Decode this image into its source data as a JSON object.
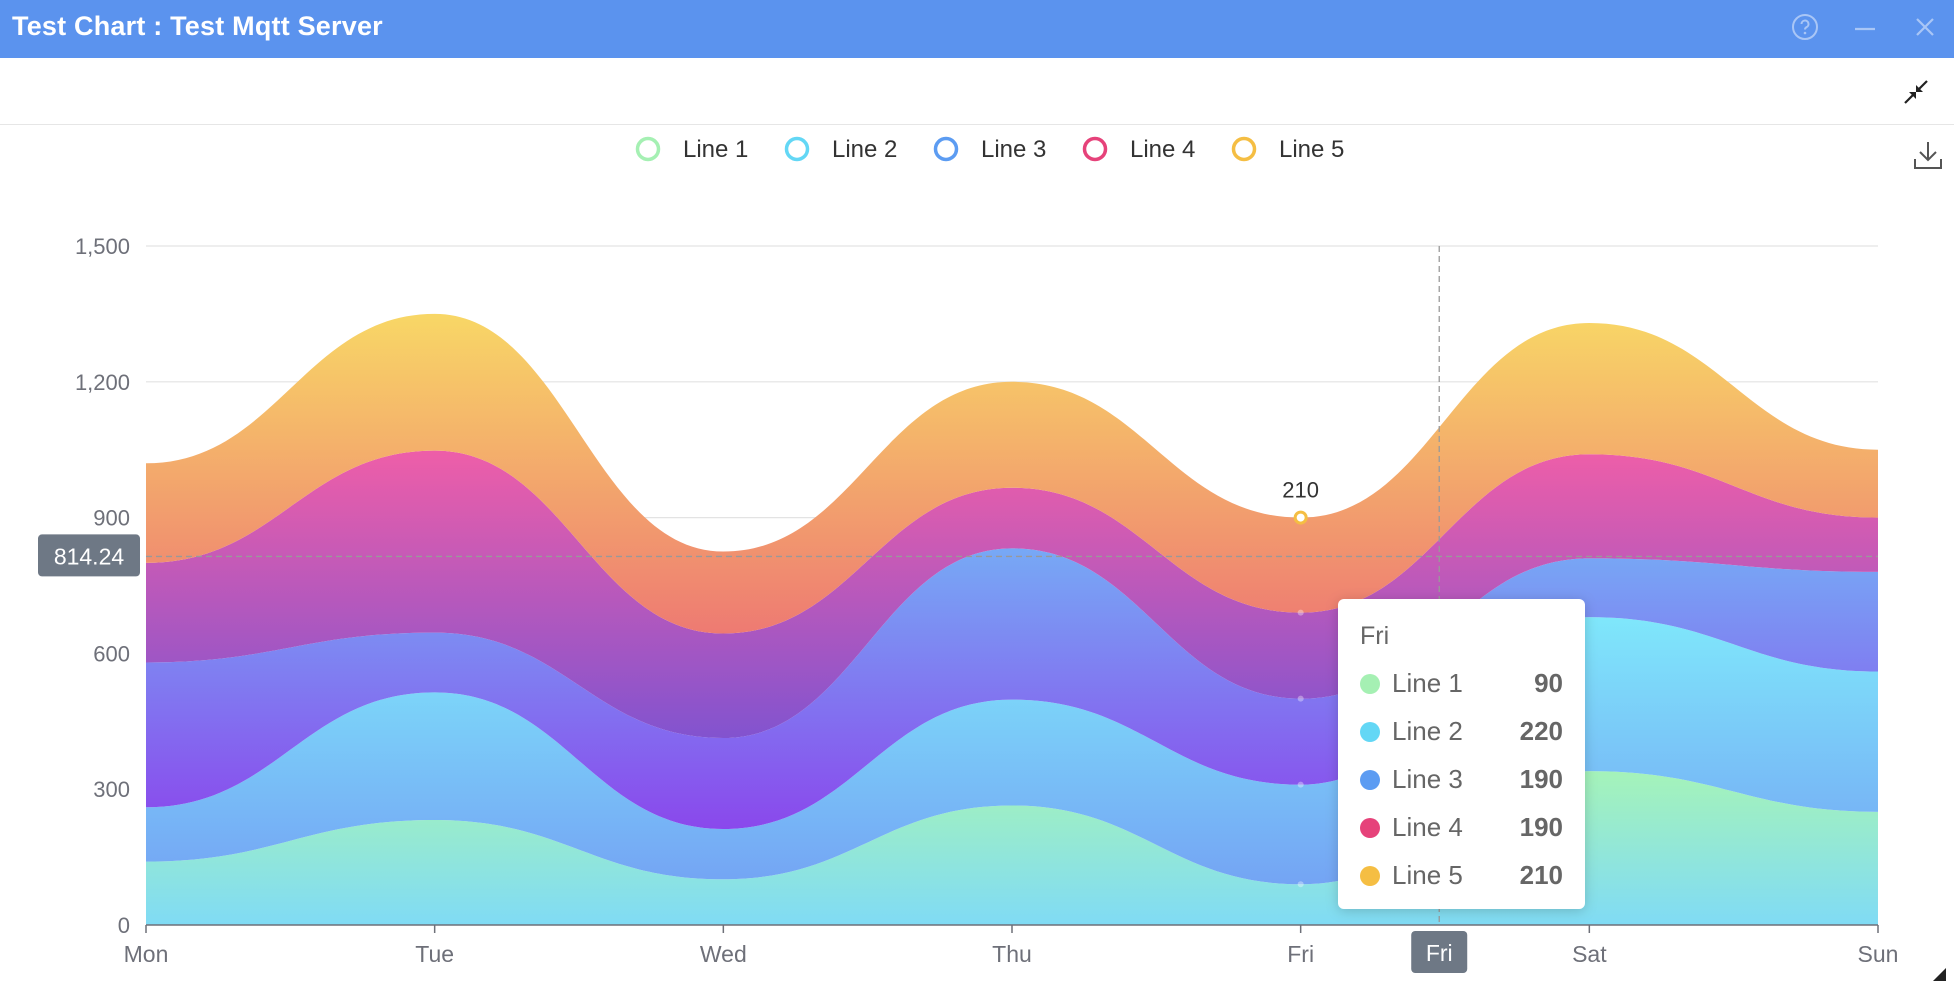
{
  "window": {
    "title": "Test Chart : Test Mqtt Server",
    "help_icon": "help-circle-icon",
    "minimize_icon": "minimize-icon",
    "close_icon": "close-icon"
  },
  "toolbar": {
    "collapse_icon": "collapse-arrows-icon",
    "download_icon": "download-icon"
  },
  "colors": {
    "titlebar": "#5b93ee",
    "line1": "#a5f0b3",
    "line2": "#63d7f5",
    "line3": "#5c9cf2",
    "line4": "#e6427a",
    "line5": "#f5be43"
  },
  "chart_data": {
    "type": "area",
    "stacked": true,
    "smooth": true,
    "categories": [
      "Mon",
      "Tue",
      "Wed",
      "Thu",
      "Fri",
      "Sat",
      "Sun"
    ],
    "series": [
      {
        "name": "Line 1",
        "values": [
          140,
          232,
          101,
          264,
          90,
          340,
          250
        ]
      },
      {
        "name": "Line 2",
        "values": [
          120,
          282,
          111,
          234,
          220,
          340,
          310
        ]
      },
      {
        "name": "Line 3",
        "values": [
          320,
          132,
          201,
          334,
          190,
          130,
          220
        ]
      },
      {
        "name": "Line 4",
        "values": [
          220,
          402,
          231,
          134,
          190,
          230,
          120
        ]
      },
      {
        "name": "Line 5",
        "values": [
          220,
          302,
          181,
          234,
          210,
          290,
          150
        ]
      }
    ],
    "ylim": [
      0,
      1500
    ],
    "yticks": [
      0,
      300,
      600,
      900,
      1200,
      1500
    ],
    "ytick_labels": [
      "0",
      "300",
      "600",
      "900",
      "1,200",
      "1,500"
    ],
    "grid": true,
    "legend": "top-center",
    "point_label": {
      "series": "Line 5",
      "category": "Fri",
      "text": "210"
    },
    "crosshair": {
      "y_value": 814.24,
      "y_label": "814.24",
      "x_label": "Fri"
    },
    "tooltip": {
      "title": "Fri",
      "rows": [
        {
          "name": "Line 1",
          "value": "90"
        },
        {
          "name": "Line 2",
          "value": "220"
        },
        {
          "name": "Line 3",
          "value": "190"
        },
        {
          "name": "Line 4",
          "value": "190"
        },
        {
          "name": "Line 5",
          "value": "210"
        }
      ]
    }
  }
}
